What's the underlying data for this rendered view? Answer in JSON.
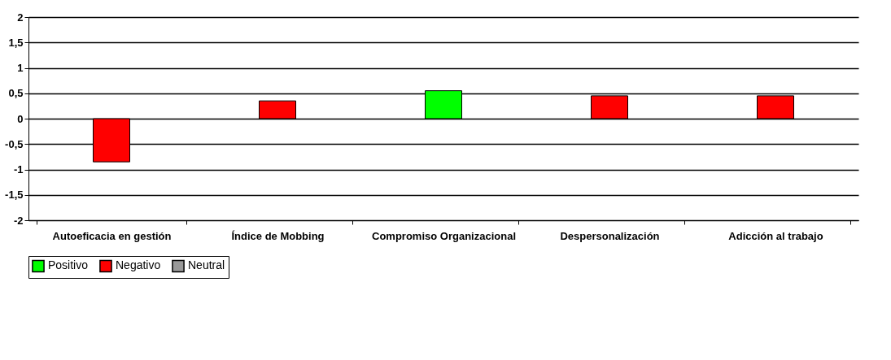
{
  "chart_data": {
    "type": "bar",
    "categories": [
      "Autoeficacia en gestión",
      "Índice de Mobbing",
      "Compromiso Organizacional",
      "Despersonalización",
      "Adicción al trabajo"
    ],
    "series": [
      {
        "name": "Positivo",
        "color": "#00ff00",
        "values": [
          null,
          null,
          0.55,
          null,
          null
        ]
      },
      {
        "name": "Negativo",
        "color": "#ff0000",
        "values": [
          -0.85,
          0.35,
          null,
          0.45,
          0.45
        ]
      },
      {
        "name": "Neutral",
        "color": "#999999",
        "values": [
          null,
          null,
          null,
          null,
          null
        ]
      }
    ],
    "ylim": [
      -2,
      2
    ],
    "yticks": [
      {
        "value": -2,
        "label": "-2"
      },
      {
        "value": -1.5,
        "label": "-1,5"
      },
      {
        "value": -1,
        "label": "-1"
      },
      {
        "value": -0.5,
        "label": "-0,5"
      },
      {
        "value": 0,
        "label": "0"
      },
      {
        "value": 0.5,
        "label": "0,5"
      },
      {
        "value": 1,
        "label": "1"
      },
      {
        "value": 1.5,
        "label": "1,5"
      },
      {
        "value": 2,
        "label": "2"
      }
    ],
    "grid": "y",
    "legend": "bottom"
  }
}
